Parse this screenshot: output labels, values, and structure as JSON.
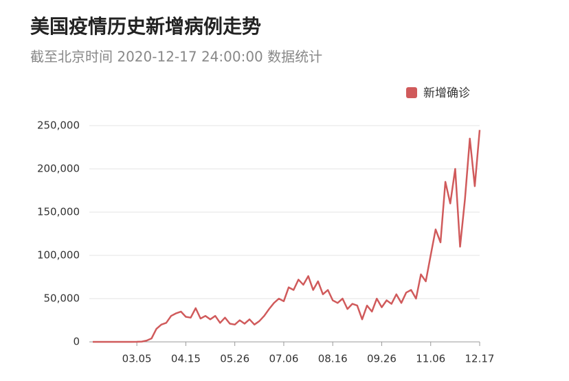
{
  "chart_data": {
    "type": "line",
    "title": "美国疫情历史新增病例走势",
    "subtitle": "截至北京时间 2020-12-17 24:00:00 数据统计",
    "categories": [
      null,
      null,
      null,
      null,
      null,
      null,
      null,
      null,
      null,
      "03.05",
      null,
      null,
      null,
      null,
      null,
      null,
      null,
      null,
      null,
      "04.15",
      null,
      null,
      null,
      null,
      null,
      null,
      null,
      null,
      null,
      "05.26",
      null,
      null,
      null,
      null,
      null,
      null,
      null,
      null,
      null,
      "07.06",
      null,
      null,
      null,
      null,
      null,
      null,
      null,
      null,
      null,
      "08.16",
      null,
      null,
      null,
      null,
      null,
      null,
      null,
      null,
      null,
      "09.26",
      null,
      null,
      null,
      null,
      null,
      null,
      null,
      null,
      null,
      "11.06",
      null,
      null,
      null,
      null,
      null,
      null,
      null,
      null,
      null,
      "12.17"
    ],
    "series": [
      {
        "name": "新增确诊",
        "color": "#d05a5b",
        "values": [
          0,
          0,
          0,
          0,
          0,
          0,
          0,
          0,
          0,
          100,
          300,
          1500,
          4000,
          15000,
          20000,
          22000,
          30000,
          33000,
          35000,
          29000,
          28000,
          39000,
          27000,
          30000,
          26000,
          30000,
          22000,
          28000,
          21000,
          20000,
          25000,
          21000,
          26000,
          20000,
          24000,
          30000,
          38000,
          45000,
          50000,
          47000,
          63000,
          60000,
          72000,
          66000,
          76000,
          60000,
          70000,
          55000,
          60000,
          48000,
          45000,
          50000,
          38000,
          44000,
          42000,
          26000,
          42000,
          35000,
          50000,
          40000,
          48000,
          44000,
          55000,
          45000,
          57000,
          60000,
          50000,
          78000,
          70000,
          100000,
          130000,
          115000,
          185000,
          160000,
          200000,
          110000,
          165000,
          235000,
          180000,
          245000
        ]
      }
    ],
    "ylim": [
      0,
      250000
    ],
    "yticks": [
      0,
      {
        "value": 50000,
        "label": "50,000"
      },
      {
        "value": 100000,
        "label": "100,000"
      },
      {
        "value": 150000,
        "label": "150,000"
      },
      {
        "value": 200000,
        "label": "200,000"
      },
      {
        "value": 250000,
        "label": "250,000"
      }
    ],
    "grid": true,
    "legend": "top-right"
  }
}
